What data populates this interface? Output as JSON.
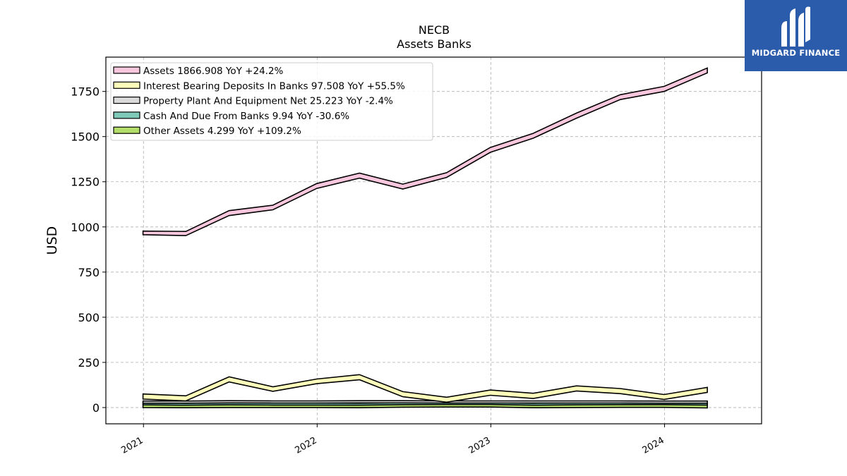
{
  "brand": {
    "name": "MIDGARD FINANCE",
    "logo_icon": "midgard-logo-icon",
    "color": "#2b5bab"
  },
  "chart_data": {
    "type": "area",
    "title": "NECB",
    "subtitle": "Assets Banks",
    "ylabel": "USD",
    "xlabel": "",
    "ylim": [
      -90,
      1940
    ],
    "xlim": [
      "2020-10-14",
      "2024-07-23"
    ],
    "yticks": [
      0,
      250,
      500,
      750,
      1000,
      1250,
      1500,
      1750
    ],
    "xticks": [
      "2021",
      "2022",
      "2023",
      "2024"
    ],
    "grid": true,
    "legend_position": "top-left",
    "x": [
      "2020-12-31",
      "2021-03-31",
      "2021-06-30",
      "2021-09-30",
      "2021-12-31",
      "2022-03-31",
      "2022-06-30",
      "2022-09-30",
      "2022-12-31",
      "2023-03-31",
      "2023-06-30",
      "2023-09-30",
      "2023-12-31",
      "2024-03-31"
    ],
    "series": [
      {
        "name": "Assets",
        "legend": "Assets  1866.908 YoY +24.2%",
        "color": "#f9c7dd",
        "upper": [
          977,
          975,
          1090,
          1120,
          1240,
          1298,
          1237,
          1300,
          1440,
          1518,
          1630,
          1732,
          1778,
          1880
        ],
        "lower": [
          957,
          952,
          1063,
          1095,
          1213,
          1270,
          1210,
          1274,
          1413,
          1491,
          1602,
          1705,
          1750,
          1853
        ]
      },
      {
        "name": "Interest Bearing Deposits In Banks",
        "legend": "Interest Bearing Deposits In Banks  97.508 YoY +55.5%",
        "color": "#ffffbb",
        "upper": [
          75,
          65,
          170,
          115,
          158,
          182,
          88,
          57,
          97,
          79,
          120,
          105,
          72,
          112
        ],
        "lower": [
          47,
          37,
          142,
          90,
          132,
          154,
          60,
          30,
          68,
          50,
          92,
          77,
          45,
          84
        ]
      },
      {
        "name": "Property Plant And Equipment Net",
        "legend": "Property Plant And Equipment Net  25.223 YoY -2.4%",
        "color": "#d9d9d9",
        "upper": [
          36,
          36,
          38,
          37,
          37,
          38,
          38,
          37,
          37,
          37,
          37,
          37,
          36,
          36
        ],
        "lower": [
          24,
          24,
          26,
          25,
          25,
          26,
          26,
          25,
          25,
          25,
          25,
          25,
          24,
          24
        ]
      },
      {
        "name": "Cash And Due From Banks",
        "legend": "Cash And Due From Banks  9.94 YoY -30.6%",
        "color": "#7fc9b8",
        "upper": [
          26,
          24,
          26,
          25,
          25,
          24,
          27,
          28,
          28,
          24,
          26,
          27,
          27,
          25
        ],
        "lower": [
          15,
          13,
          15,
          14,
          14,
          13,
          16,
          17,
          17,
          13,
          15,
          16,
          16,
          14
        ]
      },
      {
        "name": "Other Assets",
        "legend": "Other Assets  4.299 YoY +109.2%",
        "color": "#b3de69",
        "upper": [
          18,
          16,
          17,
          17,
          17,
          17,
          20,
          21,
          21,
          19,
          19,
          20,
          20,
          17
        ],
        "lower": [
          0,
          -1,
          0,
          0,
          0,
          -1,
          2,
          3,
          3,
          -1,
          0,
          1,
          1,
          -2
        ]
      }
    ]
  }
}
